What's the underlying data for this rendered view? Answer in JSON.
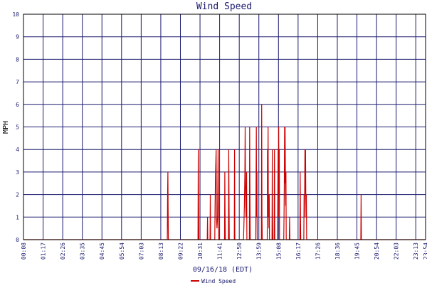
{
  "colors": {
    "background": "#ffffff",
    "grid": "#1a1a6e",
    "axis": "#000000",
    "series": "#cc0000",
    "title": "#1a1a6e",
    "label": "#1a1a6e"
  },
  "chart_data": {
    "type": "line",
    "title": "Wind Speed",
    "xlabel": "09/16/18 (EDT)",
    "ylabel": "MPH",
    "ylim": [
      0,
      10
    ],
    "yticks": [
      0,
      1,
      2,
      3,
      4,
      5,
      6,
      7,
      8,
      9,
      10
    ],
    "xlim_minutes": [
      0,
      1440
    ],
    "xtick_labels": [
      "00:08",
      "01:17",
      "02:26",
      "03:35",
      "04:45",
      "05:54",
      "07:03",
      "08:13",
      "09:22",
      "10:31",
      "11:41",
      "12:50",
      "13:59",
      "15:08",
      "16:17",
      "17:26",
      "18:36",
      "19:45",
      "20:54",
      "22:03",
      "23:13",
      "23:54"
    ],
    "grid": true,
    "legend_position": "bottom-center",
    "series": [
      {
        "name": "Wind Speed",
        "points": [
          [
            "00:00",
            0
          ],
          [
            "08:35",
            0
          ],
          [
            "08:36",
            2.0
          ],
          [
            "08:37",
            3.0
          ],
          [
            "08:38",
            1.5
          ],
          [
            "08:39",
            0
          ],
          [
            "10:25",
            0
          ],
          [
            "10:26",
            4.0
          ],
          [
            "10:27",
            2.0
          ],
          [
            "10:28",
            0
          ],
          [
            "10:58",
            0
          ],
          [
            "10:59",
            1.0
          ],
          [
            "11:00",
            0
          ],
          [
            "11:08",
            0
          ],
          [
            "11:09",
            2.0
          ],
          [
            "11:10",
            0
          ],
          [
            "11:25",
            0
          ],
          [
            "11:26",
            1.5
          ],
          [
            "11:28",
            3.0
          ],
          [
            "11:30",
            4.0
          ],
          [
            "11:31",
            1.0
          ],
          [
            "11:33",
            0.5
          ],
          [
            "11:35",
            1.0
          ],
          [
            "11:37",
            4.0
          ],
          [
            "11:38",
            2.0
          ],
          [
            "11:39",
            0
          ],
          [
            "12:00",
            0
          ],
          [
            "12:01",
            3.0
          ],
          [
            "12:02",
            1.0
          ],
          [
            "12:03",
            0
          ],
          [
            "12:14",
            0
          ],
          [
            "12:15",
            4.0
          ],
          [
            "12:16",
            2.0
          ],
          [
            "12:17",
            0
          ],
          [
            "12:35",
            0
          ],
          [
            "12:36",
            4.0
          ],
          [
            "12:37",
            0
          ],
          [
            "13:08",
            0
          ],
          [
            "13:09",
            0.5
          ],
          [
            "13:11",
            1.5
          ],
          [
            "13:13",
            3.0
          ],
          [
            "13:14",
            5.0
          ],
          [
            "13:15",
            2.5
          ],
          [
            "13:17",
            1.0
          ],
          [
            "13:19",
            3.0
          ],
          [
            "13:20",
            0
          ],
          [
            "13:29",
            0
          ],
          [
            "13:30",
            5.0
          ],
          [
            "13:31",
            2.0
          ],
          [
            "13:32",
            0
          ],
          [
            "13:52",
            0
          ],
          [
            "13:53",
            2.5
          ],
          [
            "13:54",
            5.0
          ],
          [
            "13:55",
            1.0
          ],
          [
            "13:56",
            3.0
          ],
          [
            "13:57",
            0
          ],
          [
            "14:12",
            0
          ],
          [
            "14:13",
            6.0
          ],
          [
            "14:14",
            1.0
          ],
          [
            "14:15",
            0
          ],
          [
            "14:33",
            0
          ],
          [
            "14:34",
            4.0
          ],
          [
            "14:35",
            2.5
          ],
          [
            "14:36",
            5.0
          ],
          [
            "14:37",
            1.0
          ],
          [
            "14:38",
            2.0
          ],
          [
            "14:39",
            0.5
          ],
          [
            "14:40",
            2.0
          ],
          [
            "14:41",
            0
          ],
          [
            "14:50",
            0
          ],
          [
            "14:51",
            4.0
          ],
          [
            "14:52",
            1.0
          ],
          [
            "14:53",
            0
          ],
          [
            "14:58",
            0
          ],
          [
            "14:59",
            4.0
          ],
          [
            "15:00",
            0
          ],
          [
            "15:10",
            0
          ],
          [
            "15:11",
            2.0
          ],
          [
            "15:12",
            4.0
          ],
          [
            "15:13",
            1.0
          ],
          [
            "15:14",
            5.0
          ],
          [
            "15:15",
            2.0
          ],
          [
            "15:16",
            4.0
          ],
          [
            "15:17",
            0
          ],
          [
            "15:32",
            0
          ],
          [
            "15:33",
            1.0
          ],
          [
            "15:34",
            2.5
          ],
          [
            "15:35",
            5.0
          ],
          [
            "15:36",
            2.5
          ],
          [
            "15:37",
            5.0
          ],
          [
            "15:38",
            3.0
          ],
          [
            "15:39",
            1.5
          ],
          [
            "15:40",
            3.0
          ],
          [
            "15:41",
            0
          ],
          [
            "15:52",
            0
          ],
          [
            "15:53",
            1.0
          ],
          [
            "15:54",
            0
          ],
          [
            "16:30",
            0
          ],
          [
            "16:31",
            3.0
          ],
          [
            "16:32",
            1.0
          ],
          [
            "16:33",
            0
          ],
          [
            "16:44",
            0
          ],
          [
            "16:45",
            2.0
          ],
          [
            "16:46",
            1.0
          ],
          [
            "16:47",
            2.0
          ],
          [
            "16:48",
            4.0
          ],
          [
            "16:49",
            2.0
          ],
          [
            "16:50",
            4.0
          ],
          [
            "16:51",
            2.0
          ],
          [
            "16:52",
            1.0
          ],
          [
            "16:53",
            2.0
          ],
          [
            "16:54",
            0
          ],
          [
            "20:08",
            0
          ],
          [
            "20:09",
            2.0
          ],
          [
            "20:10",
            0
          ],
          [
            "24:00",
            0
          ]
        ]
      }
    ]
  }
}
